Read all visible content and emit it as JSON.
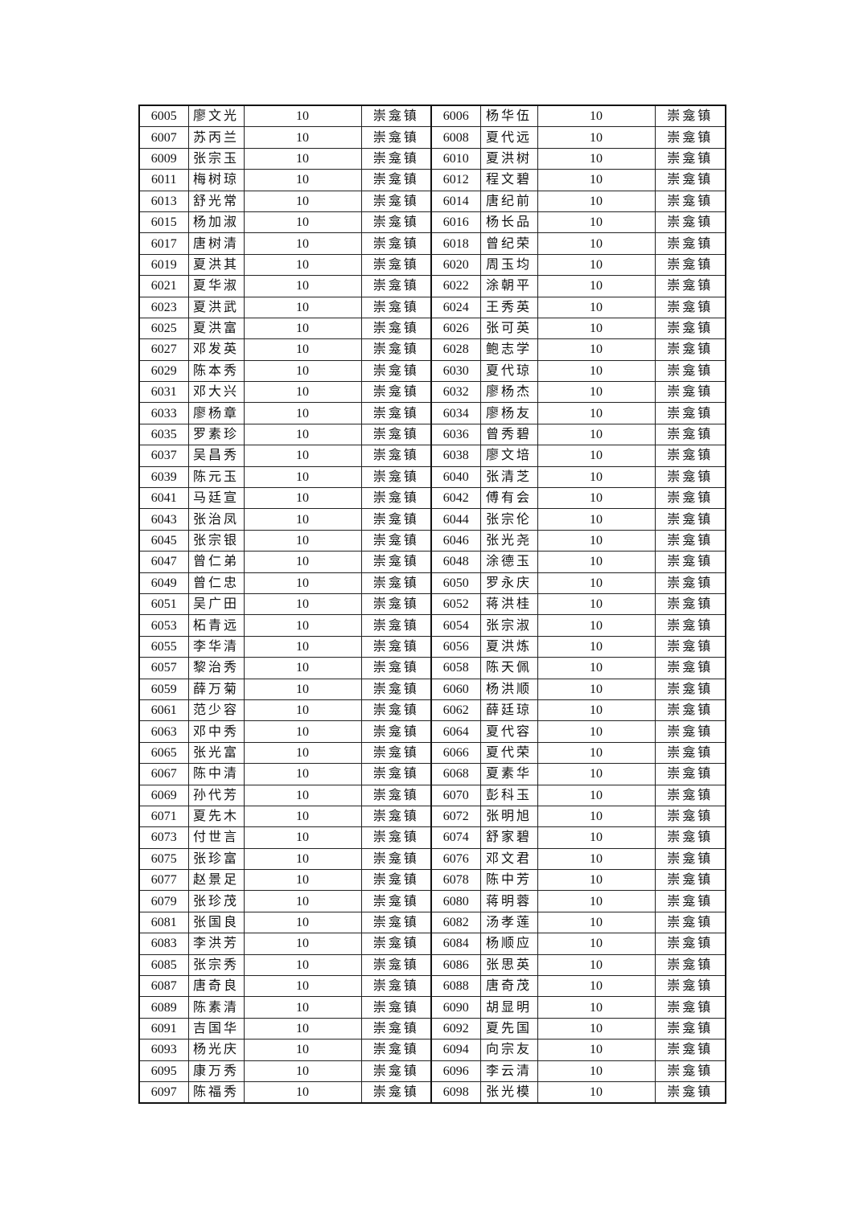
{
  "table": {
    "rows": [
      [
        "6005",
        "廖文光",
        "10",
        "崇龛镇",
        "6006",
        "杨华伍",
        "10",
        "崇龛镇"
      ],
      [
        "6007",
        "苏丙兰",
        "10",
        "崇龛镇",
        "6008",
        "夏代远",
        "10",
        "崇龛镇"
      ],
      [
        "6009",
        "张宗玉",
        "10",
        "崇龛镇",
        "6010",
        "夏洪树",
        "10",
        "崇龛镇"
      ],
      [
        "6011",
        "梅树琼",
        "10",
        "崇龛镇",
        "6012",
        "程文碧",
        "10",
        "崇龛镇"
      ],
      [
        "6013",
        "舒光常",
        "10",
        "崇龛镇",
        "6014",
        "唐纪前",
        "10",
        "崇龛镇"
      ],
      [
        "6015",
        "杨加淑",
        "10",
        "崇龛镇",
        "6016",
        "杨长品",
        "10",
        "崇龛镇"
      ],
      [
        "6017",
        "唐树清",
        "10",
        "崇龛镇",
        "6018",
        "曾纪荣",
        "10",
        "崇龛镇"
      ],
      [
        "6019",
        "夏洪其",
        "10",
        "崇龛镇",
        "6020",
        "周玉均",
        "10",
        "崇龛镇"
      ],
      [
        "6021",
        "夏华淑",
        "10",
        "崇龛镇",
        "6022",
        "涂朝平",
        "10",
        "崇龛镇"
      ],
      [
        "6023",
        "夏洪武",
        "10",
        "崇龛镇",
        "6024",
        "王秀英",
        "10",
        "崇龛镇"
      ],
      [
        "6025",
        "夏洪富",
        "10",
        "崇龛镇",
        "6026",
        "张可英",
        "10",
        "崇龛镇"
      ],
      [
        "6027",
        "邓发英",
        "10",
        "崇龛镇",
        "6028",
        "鲍志学",
        "10",
        "崇龛镇"
      ],
      [
        "6029",
        "陈本秀",
        "10",
        "崇龛镇",
        "6030",
        "夏代琼",
        "10",
        "崇龛镇"
      ],
      [
        "6031",
        "邓大兴",
        "10",
        "崇龛镇",
        "6032",
        "廖杨杰",
        "10",
        "崇龛镇"
      ],
      [
        "6033",
        "廖杨章",
        "10",
        "崇龛镇",
        "6034",
        "廖杨友",
        "10",
        "崇龛镇"
      ],
      [
        "6035",
        "罗素珍",
        "10",
        "崇龛镇",
        "6036",
        "曾秀碧",
        "10",
        "崇龛镇"
      ],
      [
        "6037",
        "吴昌秀",
        "10",
        "崇龛镇",
        "6038",
        "廖文培",
        "10",
        "崇龛镇"
      ],
      [
        "6039",
        "陈元玉",
        "10",
        "崇龛镇",
        "6040",
        "张清芝",
        "10",
        "崇龛镇"
      ],
      [
        "6041",
        "马廷宣",
        "10",
        "崇龛镇",
        "6042",
        "傅有会",
        "10",
        "崇龛镇"
      ],
      [
        "6043",
        "张治凤",
        "10",
        "崇龛镇",
        "6044",
        "张宗伦",
        "10",
        "崇龛镇"
      ],
      [
        "6045",
        "张宗银",
        "10",
        "崇龛镇",
        "6046",
        "张光尧",
        "10",
        "崇龛镇"
      ],
      [
        "6047",
        "曾仁弟",
        "10",
        "崇龛镇",
        "6048",
        "涂德玉",
        "10",
        "崇龛镇"
      ],
      [
        "6049",
        "曾仁忠",
        "10",
        "崇龛镇",
        "6050",
        "罗永庆",
        "10",
        "崇龛镇"
      ],
      [
        "6051",
        "吴广田",
        "10",
        "崇龛镇",
        "6052",
        "蒋洪桂",
        "10",
        "崇龛镇"
      ],
      [
        "6053",
        "柘青远",
        "10",
        "崇龛镇",
        "6054",
        "张宗淑",
        "10",
        "崇龛镇"
      ],
      [
        "6055",
        "李华清",
        "10",
        "崇龛镇",
        "6056",
        "夏洪炼",
        "10",
        "崇龛镇"
      ],
      [
        "6057",
        "黎治秀",
        "10",
        "崇龛镇",
        "6058",
        "陈天佩",
        "10",
        "崇龛镇"
      ],
      [
        "6059",
        "薛万菊",
        "10",
        "崇龛镇",
        "6060",
        "杨洪顺",
        "10",
        "崇龛镇"
      ],
      [
        "6061",
        "范少容",
        "10",
        "崇龛镇",
        "6062",
        "薛廷琼",
        "10",
        "崇龛镇"
      ],
      [
        "6063",
        "邓中秀",
        "10",
        "崇龛镇",
        "6064",
        "夏代容",
        "10",
        "崇龛镇"
      ],
      [
        "6065",
        "张光富",
        "10",
        "崇龛镇",
        "6066",
        "夏代荣",
        "10",
        "崇龛镇"
      ],
      [
        "6067",
        "陈中清",
        "10",
        "崇龛镇",
        "6068",
        "夏素华",
        "10",
        "崇龛镇"
      ],
      [
        "6069",
        "孙代芳",
        "10",
        "崇龛镇",
        "6070",
        "彭科玉",
        "10",
        "崇龛镇"
      ],
      [
        "6071",
        "夏先木",
        "10",
        "崇龛镇",
        "6072",
        "张明旭",
        "10",
        "崇龛镇"
      ],
      [
        "6073",
        "付世言",
        "10",
        "崇龛镇",
        "6074",
        "舒家碧",
        "10",
        "崇龛镇"
      ],
      [
        "6075",
        "张珍富",
        "10",
        "崇龛镇",
        "6076",
        "邓文君",
        "10",
        "崇龛镇"
      ],
      [
        "6077",
        "赵景足",
        "10",
        "崇龛镇",
        "6078",
        "陈中芳",
        "10",
        "崇龛镇"
      ],
      [
        "6079",
        "张珍茂",
        "10",
        "崇龛镇",
        "6080",
        "蒋明蓉",
        "10",
        "崇龛镇"
      ],
      [
        "6081",
        "张国良",
        "10",
        "崇龛镇",
        "6082",
        "汤孝莲",
        "10",
        "崇龛镇"
      ],
      [
        "6083",
        "李洪芳",
        "10",
        "崇龛镇",
        "6084",
        "杨顺应",
        "10",
        "崇龛镇"
      ],
      [
        "6085",
        "张宗秀",
        "10",
        "崇龛镇",
        "6086",
        "张思英",
        "10",
        "崇龛镇"
      ],
      [
        "6087",
        "唐奇良",
        "10",
        "崇龛镇",
        "6088",
        "唐奇茂",
        "10",
        "崇龛镇"
      ],
      [
        "6089",
        "陈素清",
        "10",
        "崇龛镇",
        "6090",
        "胡显明",
        "10",
        "崇龛镇"
      ],
      [
        "6091",
        "吉国华",
        "10",
        "崇龛镇",
        "6092",
        "夏先国",
        "10",
        "崇龛镇"
      ],
      [
        "6093",
        "杨光庆",
        "10",
        "崇龛镇",
        "6094",
        "向宗友",
        "10",
        "崇龛镇"
      ],
      [
        "6095",
        "康万秀",
        "10",
        "崇龛镇",
        "6096",
        "李云清",
        "10",
        "崇龛镇"
      ],
      [
        "6097",
        "陈福秀",
        "10",
        "崇龛镇",
        "6098",
        "张光模",
        "10",
        "崇龛镇"
      ]
    ]
  }
}
